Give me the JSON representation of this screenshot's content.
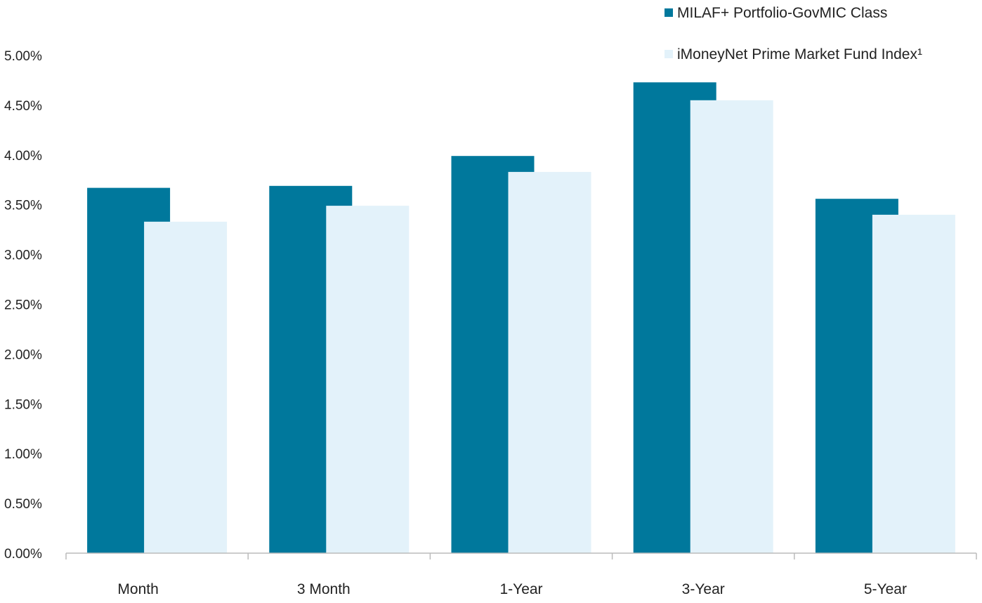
{
  "colors": {
    "series_1": "#00789c",
    "series_2": "#e3f2fa",
    "axis": "#bbbbbb"
  },
  "legend": {
    "placement": "top-right",
    "items": [
      {
        "label": "MILAF+ Portfolio-GovMIC Class",
        "color": "#00789c"
      },
      {
        "label": "iMoneyNet Prime Market Fund Index¹",
        "color": "#e3f2fa"
      }
    ]
  },
  "chart_data": {
    "type": "bar",
    "title": "",
    "xlabel": "",
    "ylabel": "",
    "categories": [
      "Month",
      "3 Month",
      "1-Year",
      "3-Year",
      "5-Year"
    ],
    "series": [
      {
        "name": "MILAF+ Portfolio-GovMIC Class",
        "values": [
          3.67,
          3.69,
          3.99,
          4.73,
          3.56
        ]
      },
      {
        "name": "iMoneyNet Prime Market Fund Index¹",
        "values": [
          3.33,
          3.49,
          3.83,
          4.55,
          3.4
        ]
      }
    ],
    "ylim": [
      0,
      5
    ],
    "yticks": [
      "0.00%",
      "0.50%",
      "1.00%",
      "1.50%",
      "2.00%",
      "2.50%",
      "3.00%",
      "3.50%",
      "4.00%",
      "4.50%",
      "5.00%"
    ],
    "grid": false
  }
}
